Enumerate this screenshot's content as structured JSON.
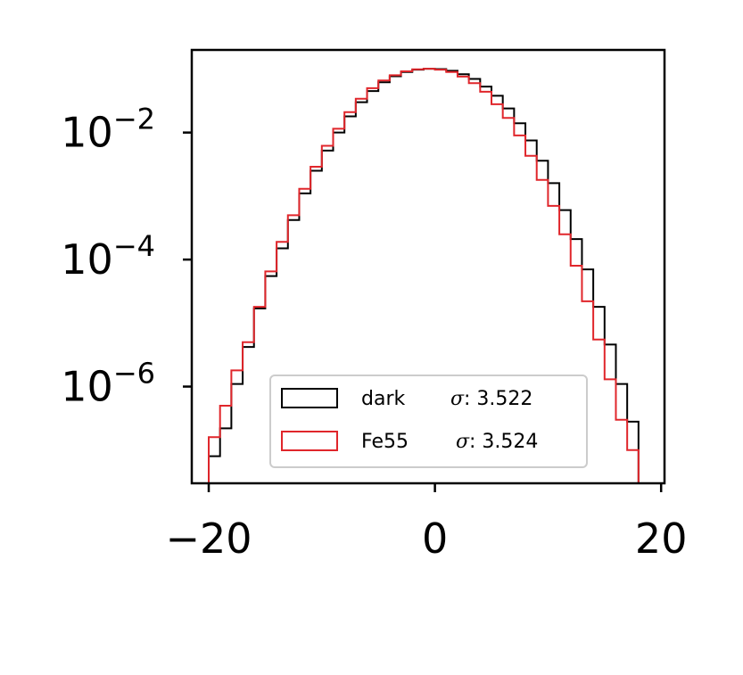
{
  "chart_data": {
    "type": "histogram",
    "x_ticks": [
      -20,
      0,
      20
    ],
    "x_tick_labels": [
      "−20",
      "0",
      "20"
    ],
    "y_scale": "log",
    "y_ticks": [
      {
        "value": 0.01,
        "base": "10",
        "exp": "−2"
      },
      {
        "value": 0.0001,
        "base": "10",
        "exp": "−4"
      },
      {
        "value": 1e-06,
        "base": "10",
        "exp": "−6"
      }
    ],
    "xlim": [
      -21.5,
      20.3
    ],
    "ylim": [
      3e-08,
      0.2
    ],
    "bin_edges": [
      -20,
      -19,
      -18,
      -17,
      -16,
      -15,
      -14,
      -13,
      -12,
      -11,
      -10,
      -9,
      -8,
      -7,
      -6,
      -5,
      -4,
      -3,
      -2,
      -1,
      0,
      1,
      2,
      3,
      4,
      5,
      6,
      7,
      8,
      9,
      10,
      11,
      12,
      13,
      14,
      15,
      16,
      17,
      18,
      19
    ],
    "series": [
      {
        "name": "dark",
        "sigma_label": "σ",
        "sigma_value": ": 3.522",
        "color": "#000000",
        "counts": [
          8e-08,
          2.2e-07,
          1.1e-06,
          4.2e-06,
          1.7e-05,
          5.5e-05,
          0.00015,
          0.00042,
          0.0011,
          0.0025,
          0.0052,
          0.01,
          0.018,
          0.03,
          0.045,
          0.062,
          0.077,
          0.09,
          0.098,
          0.101,
          0.1,
          0.094,
          0.083,
          0.07,
          0.053,
          0.038,
          0.024,
          0.014,
          0.0075,
          0.0036,
          0.0016,
          0.0006,
          0.00021,
          7e-05,
          1.8e-05,
          4.6e-06,
          1.1e-06,
          2.8e-07,
          2.8e-08
        ]
      },
      {
        "name": "Fe55",
        "sigma_label": "σ",
        "sigma_value": ": 3.524",
        "color": "#e0262b",
        "counts": [
          1.6e-07,
          5e-07,
          1.8e-06,
          5e-06,
          1.8e-05,
          6.5e-05,
          0.00019,
          0.0005,
          0.0013,
          0.0029,
          0.0062,
          0.0115,
          0.021,
          0.034,
          0.05,
          0.066,
          0.08,
          0.092,
          0.099,
          0.101,
          0.098,
          0.09,
          0.076,
          0.06,
          0.044,
          0.028,
          0.017,
          0.009,
          0.0043,
          0.0018,
          0.0007,
          0.00025,
          8e-05,
          2.2e-05,
          5.5e-06,
          1.3e-06,
          3e-07,
          1e-07,
          3e-08
        ]
      }
    ],
    "legend_position": "lower-right"
  }
}
